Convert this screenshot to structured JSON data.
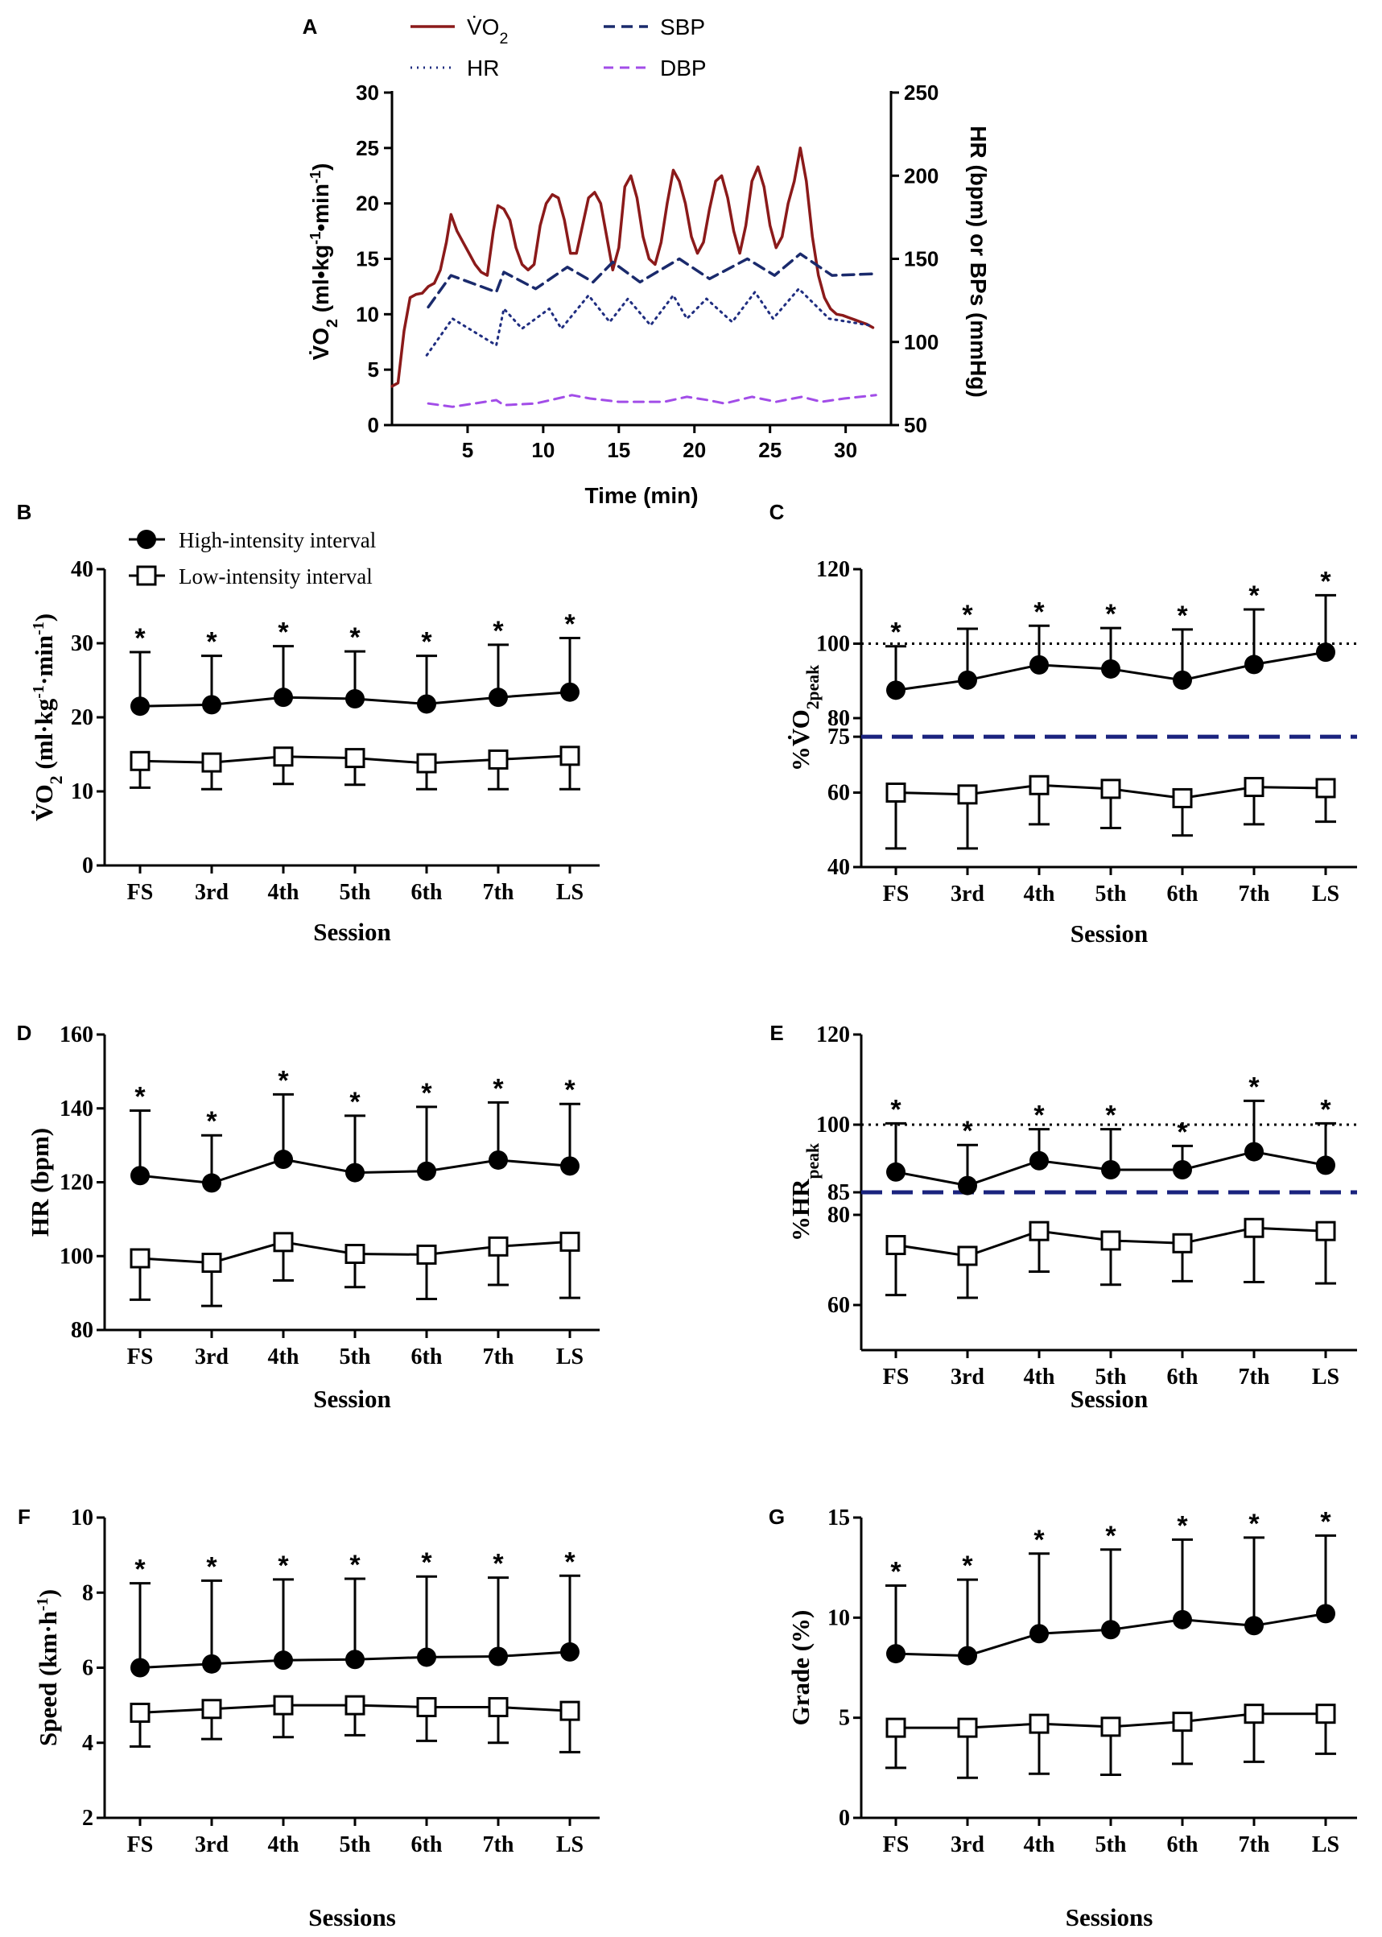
{
  "chart_data": [
    {
      "panel": "A",
      "type": "line",
      "xlabel": "Time (min)",
      "ylabel": "V̇O2 (ml•kg-1•min-1)",
      "ylabel_right": "HR (bpm) or BPs (mmHg)",
      "xlim": [
        0,
        33
      ],
      "ylim": [
        0,
        30
      ],
      "ylim_right": [
        50,
        250
      ],
      "xticks": [
        5,
        10,
        15,
        20,
        25,
        30
      ],
      "yticks": [
        0,
        5,
        10,
        15,
        20,
        25,
        30
      ],
      "yticks_right": [
        50,
        100,
        150,
        200,
        250
      ],
      "legend": [
        "V̇O2",
        "HR",
        "SBP",
        "DBP"
      ],
      "series": [
        {
          "name": "V̇O2",
          "axis": "left",
          "color": "#8b1a1a",
          "x": [
            0,
            0.4,
            0.8,
            1.2,
            1.6,
            2.0,
            2.4,
            2.8,
            3.2,
            3.6,
            3.9,
            4.3,
            4.7,
            5.1,
            5.5,
            5.9,
            6.3,
            6.7,
            7.0,
            7.4,
            7.8,
            8.2,
            8.6,
            9.0,
            9.4,
            9.8,
            10.2,
            10.6,
            11.0,
            11.4,
            11.8,
            12.2,
            12.6,
            13.0,
            13.4,
            13.8,
            14.2,
            14.6,
            15.0,
            15.4,
            15.8,
            16.2,
            16.6,
            17.0,
            17.4,
            17.8,
            18.2,
            18.6,
            19.0,
            19.4,
            19.8,
            20.2,
            20.6,
            21.0,
            21.4,
            21.8,
            22.2,
            22.6,
            23.0,
            23.4,
            23.8,
            24.2,
            24.6,
            25.0,
            25.4,
            25.8,
            26.2,
            26.6,
            27.0,
            27.4,
            27.8,
            28.2,
            28.6,
            29.0,
            29.4,
            29.8,
            30.2,
            30.6,
            31.0,
            31.4,
            31.8
          ],
          "y": [
            3.5,
            3.8,
            8.5,
            11.5,
            11.8,
            11.9,
            12.5,
            12.8,
            14.0,
            16.5,
            19.0,
            17.5,
            16.5,
            15.5,
            14.5,
            13.8,
            13.5,
            17.5,
            19.8,
            19.5,
            18.5,
            16.0,
            14.5,
            14.0,
            14.5,
            18.0,
            20.0,
            20.8,
            20.5,
            18.5,
            15.5,
            15.5,
            18.0,
            20.5,
            21.0,
            20.0,
            17.0,
            14.0,
            16.0,
            21.5,
            22.5,
            20.5,
            17.0,
            15.0,
            14.5,
            16.5,
            20.0,
            23.0,
            22.0,
            20.0,
            17.0,
            15.5,
            16.5,
            19.5,
            22.0,
            22.5,
            20.5,
            17.5,
            15.5,
            18.0,
            22.0,
            23.3,
            21.5,
            18.0,
            16.0,
            17.0,
            20.0,
            22.0,
            25.0,
            22.0,
            17.0,
            13.5,
            11.5,
            10.5,
            10.0,
            9.9,
            9.7,
            9.5,
            9.3,
            9.1,
            8.8
          ]
        },
        {
          "name": "HR",
          "axis": "right",
          "color": "#1f2d80",
          "x": [
            2.3,
            4.0,
            6.9,
            7.4,
            8.6,
            10.4,
            11.2,
            13.0,
            14.4,
            15.6,
            17.1,
            18.6,
            19.5,
            20.8,
            22.5,
            24.0,
            25.2,
            26.9,
            28.9,
            31.6
          ],
          "y": [
            92,
            114,
            98,
            120,
            108,
            120,
            108,
            128,
            112,
            126,
            110,
            128,
            114,
            126,
            112,
            130,
            114,
            132,
            114,
            110
          ]
        },
        {
          "name": "SBP",
          "axis": "right",
          "color": "#1a2a6c",
          "x": [
            2.4,
            3.9,
            6.9,
            7.4,
            9.5,
            11.6,
            13.3,
            14.6,
            16.4,
            19.0,
            21.0,
            23.5,
            25.3,
            27.0,
            29.1,
            32.0
          ],
          "y": [
            121,
            140,
            130,
            142,
            132,
            145,
            136,
            148,
            136,
            150,
            138,
            150,
            140,
            153,
            140,
            141
          ]
        },
        {
          "name": "DBP",
          "axis": "right",
          "color": "#a24de8",
          "x": [
            2.4,
            4.0,
            6.9,
            7.4,
            9.5,
            11.9,
            13.1,
            15.0,
            16.5,
            18.0,
            19.5,
            20.9,
            22.0,
            23.8,
            25.4,
            27.1,
            28.4,
            29.9,
            32.0
          ],
          "y": [
            63,
            61,
            65,
            62,
            63,
            68,
            66,
            64,
            64,
            64,
            67,
            65,
            63,
            67,
            64,
            67,
            64,
            66,
            68
          ]
        }
      ]
    },
    {
      "panel": "B",
      "type": "line",
      "categories": [
        "FS",
        "3rd",
        "4th",
        "5th",
        "6th",
        "7th",
        "LS"
      ],
      "xlabel": "Session",
      "ylabel": "V̇O2 (ml·kg-1·min-1)",
      "ylim": [
        0,
        40
      ],
      "yticks": [
        0,
        10,
        20,
        30,
        40
      ],
      "legend": [
        "High-intensity interval",
        "Low-intensity interval"
      ],
      "series": [
        {
          "name": "High-intensity interval",
          "values": [
            21.5,
            21.7,
            22.7,
            22.5,
            21.8,
            22.7,
            23.4
          ],
          "sd": [
            7.3,
            6.6,
            6.9,
            6.4,
            6.5,
            7.1,
            7.3
          ]
        },
        {
          "name": "Low-intensity interval",
          "values": [
            14.1,
            13.9,
            14.7,
            14.5,
            13.8,
            14.3,
            14.8
          ],
          "sd": [
            3.6,
            3.6,
            3.7,
            3.6,
            3.5,
            4.0,
            4.5
          ]
        }
      ],
      "annotations": [
        "*",
        "*",
        "*",
        "*",
        "*",
        "*",
        "*"
      ]
    },
    {
      "panel": "C",
      "type": "line",
      "categories": [
        "FS",
        "3rd",
        "4th",
        "5th",
        "6th",
        "7th",
        "LS"
      ],
      "xlabel": "Session",
      "ylabel": "%V̇O2peak",
      "ylim": [
        40,
        120
      ],
      "yticks": [
        40,
        60,
        75,
        80,
        100,
        120
      ],
      "reference_lines": [
        {
          "y": 100,
          "style": "dotted",
          "color": "#000000"
        },
        {
          "y": 75,
          "style": "dashed",
          "color": "#1a237e"
        }
      ],
      "series": [
        {
          "name": "High-intensity interval",
          "values": [
            87.5,
            90.2,
            94.3,
            93.2,
            90.2,
            94.4,
            97.7
          ],
          "sd": [
            11.8,
            13.8,
            10.5,
            11.0,
            13.6,
            14.8,
            15.3
          ]
        },
        {
          "name": "Low-intensity interval",
          "values": [
            60.0,
            59.5,
            62.0,
            61.0,
            58.5,
            61.5,
            61.2
          ],
          "sd": [
            15.0,
            14.5,
            10.5,
            10.5,
            10.0,
            10.0,
            9.0
          ]
        }
      ],
      "annotations": [
        "*",
        "*",
        "*",
        "*",
        "*",
        "*",
        "*"
      ]
    },
    {
      "panel": "D",
      "type": "line",
      "categories": [
        "FS",
        "3rd",
        "4th",
        "5th",
        "6th",
        "7th",
        "LS"
      ],
      "xlabel": "Session",
      "ylabel": "HR (bpm)",
      "ylim": [
        80,
        160
      ],
      "yticks": [
        80,
        100,
        120,
        140,
        160
      ],
      "series": [
        {
          "name": "High-intensity interval",
          "values": [
            121.8,
            119.8,
            126.2,
            122.6,
            123.0,
            126.0,
            124.4
          ],
          "sd": [
            17.6,
            12.9,
            17.6,
            15.4,
            17.4,
            15.6,
            16.8
          ]
        },
        {
          "name": "Low-intensity interval",
          "values": [
            99.4,
            98.2,
            103.8,
            100.6,
            100.4,
            102.6,
            103.9
          ],
          "sd": [
            11.2,
            11.7,
            10.4,
            9.0,
            12.0,
            10.4,
            15.2
          ]
        }
      ],
      "annotations": [
        "*",
        "*",
        "*",
        "*",
        "*",
        "*",
        "*"
      ]
    },
    {
      "panel": "E",
      "type": "line",
      "categories": [
        "FS",
        "3rd",
        "4th",
        "5th",
        "6th",
        "7th",
        "LS"
      ],
      "xlabel": "Session",
      "ylabel": "%HRpeak",
      "ylim": [
        50,
        120
      ],
      "yticks": [
        60,
        80,
        85,
        100,
        120
      ],
      "reference_lines": [
        {
          "y": 100,
          "style": "dotted",
          "color": "#000000"
        },
        {
          "y": 85,
          "style": "dashed",
          "color": "#1a237e"
        }
      ],
      "series": [
        {
          "name": "High-intensity interval",
          "values": [
            89.5,
            86.5,
            92.0,
            90.0,
            90.0,
            94.0,
            91.0
          ],
          "sd": [
            10.8,
            9.0,
            7.0,
            9.0,
            5.3,
            11.3,
            9.3
          ]
        },
        {
          "name": "Low-intensity interval",
          "values": [
            73.3,
            70.9,
            76.4,
            74.3,
            73.7,
            77.1,
            76.4
          ],
          "sd": [
            11.1,
            9.3,
            9.0,
            9.8,
            8.4,
            12.0,
            11.6
          ]
        }
      ],
      "annotations": [
        "*",
        "*",
        "*",
        "*",
        "*",
        "*",
        "*"
      ]
    },
    {
      "panel": "F",
      "type": "line",
      "categories": [
        "FS",
        "3rd",
        "4th",
        "5th",
        "6th",
        "7th",
        "LS"
      ],
      "xlabel": "Sessions",
      "ylabel": "Speed (km·h-1)",
      "ylim": [
        2,
        10
      ],
      "yticks": [
        2,
        4,
        6,
        8,
        10
      ],
      "series": [
        {
          "name": "High-intensity interval",
          "values": [
            6.0,
            6.1,
            6.2,
            6.22,
            6.28,
            6.3,
            6.42
          ],
          "sd": [
            2.25,
            2.22,
            2.15,
            2.15,
            2.15,
            2.1,
            2.03
          ]
        },
        {
          "name": "Low-intensity interval",
          "values": [
            4.8,
            4.9,
            5.0,
            5.0,
            4.95,
            4.95,
            4.85
          ],
          "sd": [
            0.9,
            0.8,
            0.85,
            0.8,
            0.9,
            0.95,
            1.1
          ]
        }
      ],
      "annotations": [
        "*",
        "*",
        "*",
        "*",
        "*",
        "*",
        "*"
      ]
    },
    {
      "panel": "G",
      "type": "line",
      "categories": [
        "FS",
        "3rd",
        "4th",
        "5th",
        "6th",
        "7th",
        "LS"
      ],
      "xlabel": "Sessions",
      "ylabel": "Grade (%)",
      "ylim": [
        0,
        15
      ],
      "yticks": [
        0,
        5,
        10,
        15
      ],
      "series": [
        {
          "name": "High-intensity interval",
          "values": [
            8.2,
            8.1,
            9.2,
            9.4,
            9.9,
            9.6,
            10.2
          ],
          "sd": [
            3.4,
            3.8,
            4.0,
            4.0,
            4.0,
            4.4,
            3.9
          ]
        },
        {
          "name": "Low-intensity interval",
          "values": [
            4.5,
            4.5,
            4.7,
            4.55,
            4.8,
            5.2,
            5.2
          ],
          "sd": [
            2.0,
            2.5,
            2.5,
            2.4,
            2.1,
            2.4,
            2.0
          ]
        }
      ],
      "annotations": [
        "*",
        "*",
        "*",
        "*",
        "*",
        "*",
        "*"
      ]
    }
  ]
}
